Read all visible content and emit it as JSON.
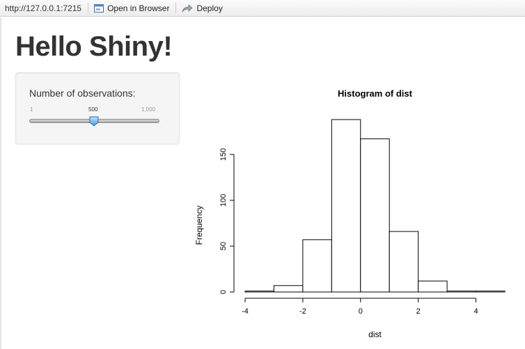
{
  "toolbar": {
    "url": "http://127.0.0.1:7215",
    "open_in_browser": "Open in Browser",
    "deploy": "Deploy"
  },
  "page": {
    "title": "Hello Shiny!"
  },
  "sidebar": {
    "slider": {
      "label": "Number of observations:",
      "min_label": "1",
      "max_label": "1,000",
      "value_label": "500",
      "min": 1,
      "max": 1000,
      "value": 500
    }
  },
  "chart_data": {
    "type": "bar",
    "title": "Histogram of dist",
    "xlabel": "dist",
    "ylabel": "Frequency",
    "bins": [
      [
        -4,
        -3
      ],
      [
        -3,
        -2
      ],
      [
        -2,
        -1
      ],
      [
        -1,
        0
      ],
      [
        0,
        1
      ],
      [
        1,
        2
      ],
      [
        2,
        3
      ],
      [
        3,
        4
      ],
      [
        4,
        5
      ]
    ],
    "values": [
      1,
      7,
      57,
      188,
      167,
      66,
      12,
      1,
      1
    ],
    "xticks": [
      -4,
      -2,
      0,
      2,
      4
    ],
    "yticks": [
      0,
      50,
      100,
      150
    ],
    "xlim": [
      -4,
      5
    ],
    "ylim": [
      0,
      188
    ]
  }
}
